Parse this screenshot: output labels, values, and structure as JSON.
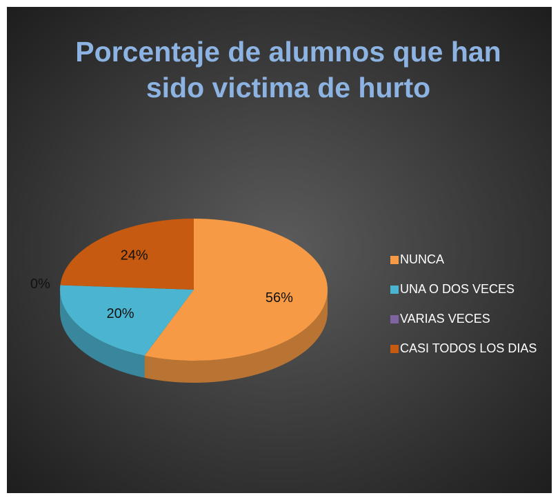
{
  "chart_data": {
    "type": "pie3d",
    "title": [
      "Porcentaje de alumnos que han",
      "sido victima de hurto"
    ],
    "categories": [
      "NUNCA",
      "UNA O DOS VECES",
      "VARIAS VECES",
      "CASI TODOS LOS DIAS"
    ],
    "values": [
      56,
      20,
      0,
      24
    ],
    "value_labels": [
      "56%",
      "20%",
      "0%",
      "24%"
    ],
    "colors": [
      "#f79a45",
      "#4bb4d0",
      "#8064a2",
      "#c65a10"
    ],
    "legend": "right"
  }
}
